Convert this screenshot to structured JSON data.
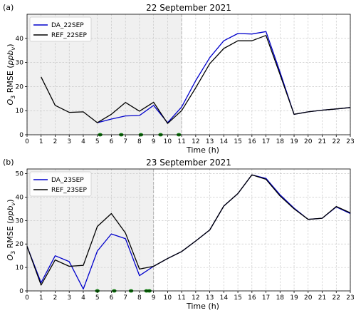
{
  "chart_data": [
    {
      "type": "line",
      "panel_label": "(a)",
      "title": "22 September 2021",
      "xlabel": "Time (h)",
      "ylabel": "O3 RMSE (ppb_v)",
      "ylabel_parts": {
        "main": "O",
        "sub": "3",
        "mid": " RMSE (",
        "unit": "ppb",
        "unit_sub": "v",
        "close": ")"
      },
      "xlim": [
        0,
        23
      ],
      "ylim": [
        0,
        50
      ],
      "xticks": [
        0,
        1,
        2,
        3,
        4,
        5,
        6,
        7,
        8,
        9,
        10,
        11,
        12,
        13,
        14,
        15,
        16,
        17,
        18,
        19,
        20,
        21,
        22,
        23
      ],
      "yticks": [
        0,
        10,
        20,
        30,
        40
      ],
      "grid": true,
      "legend_position": "top-left",
      "shaded_window": [
        0,
        11
      ],
      "markers": [
        5.2,
        6.7,
        8.1,
        9.5,
        10.8
      ],
      "series": [
        {
          "name": "DA_22SEP",
          "color": "#0000cc",
          "x": [
            5,
            6,
            7,
            8,
            9,
            10,
            11,
            12,
            13,
            14,
            15,
            16,
            17,
            18,
            19,
            20,
            21,
            22,
            23
          ],
          "y": [
            5,
            6.5,
            7.8,
            8,
            12.2,
            5,
            11.5,
            22.5,
            32,
            39,
            42,
            41.8,
            42.8,
            26,
            8.5,
            9.5,
            10.2,
            10.7,
            11.3
          ]
        },
        {
          "name": "REF_22SEP",
          "color": "#000000",
          "x": [
            1,
            2,
            3,
            4,
            5,
            6,
            7,
            8,
            9,
            10,
            11,
            12,
            13,
            14,
            15,
            16,
            17,
            18,
            19,
            20,
            21,
            22,
            23
          ],
          "y": [
            24,
            12.2,
            9.3,
            9.5,
            5,
            8.5,
            13.4,
            9.8,
            13.5,
            4.7,
            10,
            19.5,
            29.5,
            35.8,
            39,
            39,
            41.2,
            25,
            8.5,
            9.5,
            10.2,
            10.7,
            11.3
          ]
        }
      ]
    },
    {
      "type": "line",
      "panel_label": "(b)",
      "title": "23 September 2021",
      "xlabel": "Time (h)",
      "ylabel": "O3 RMSE (ppb_v)",
      "ylabel_parts": {
        "main": "O",
        "sub": "3",
        "mid": " RMSE (",
        "unit": "ppb",
        "unit_sub": "v",
        "close": ")"
      },
      "xlim": [
        0,
        23
      ],
      "ylim": [
        0,
        52
      ],
      "xticks": [
        0,
        1,
        2,
        3,
        4,
        5,
        6,
        7,
        8,
        9,
        10,
        11,
        12,
        13,
        14,
        15,
        16,
        17,
        18,
        19,
        20,
        21,
        22,
        23
      ],
      "yticks": [
        0,
        10,
        20,
        30,
        40,
        50
      ],
      "grid": true,
      "legend_position": "top-left",
      "shaded_window": [
        0,
        9
      ],
      "markers": [
        5,
        6.2,
        7.4,
        8.5,
        8.7
      ],
      "series": [
        {
          "name": "DA_23SEP",
          "color": "#0000cc",
          "x": [
            0,
            1,
            2,
            3,
            4,
            5,
            6,
            7,
            8,
            9,
            10,
            11,
            12,
            13,
            14,
            15,
            16,
            17,
            18,
            19,
            20,
            21,
            22,
            23
          ],
          "y": [
            19,
            3.5,
            15,
            12.5,
            0.8,
            17,
            24.3,
            22.3,
            6.5,
            10.5,
            13.8,
            16.8,
            21.3,
            26,
            36.2,
            41.5,
            49.5,
            48,
            41,
            35.3,
            30.5,
            31,
            35.8,
            33
          ]
        },
        {
          "name": "REF_23SEP",
          "color": "#000000",
          "x": [
            0,
            1,
            2,
            3,
            4,
            5,
            6,
            7,
            8,
            9,
            10,
            11,
            12,
            13,
            14,
            15,
            16,
            17,
            18,
            19,
            20,
            21,
            22,
            23
          ],
          "y": [
            19,
            2.5,
            13.2,
            10.5,
            10.9,
            27.5,
            33,
            24.7,
            9.3,
            10.5,
            13.8,
            16.8,
            21.3,
            26,
            36.2,
            41.5,
            49.5,
            47.6,
            40.5,
            35,
            30.5,
            31,
            36,
            33.3
          ]
        }
      ]
    }
  ],
  "styling": {
    "shade_color": "#f0f0f0",
    "marker_color": "#0b7a0b",
    "grid_color": "#bfbfbf"
  }
}
